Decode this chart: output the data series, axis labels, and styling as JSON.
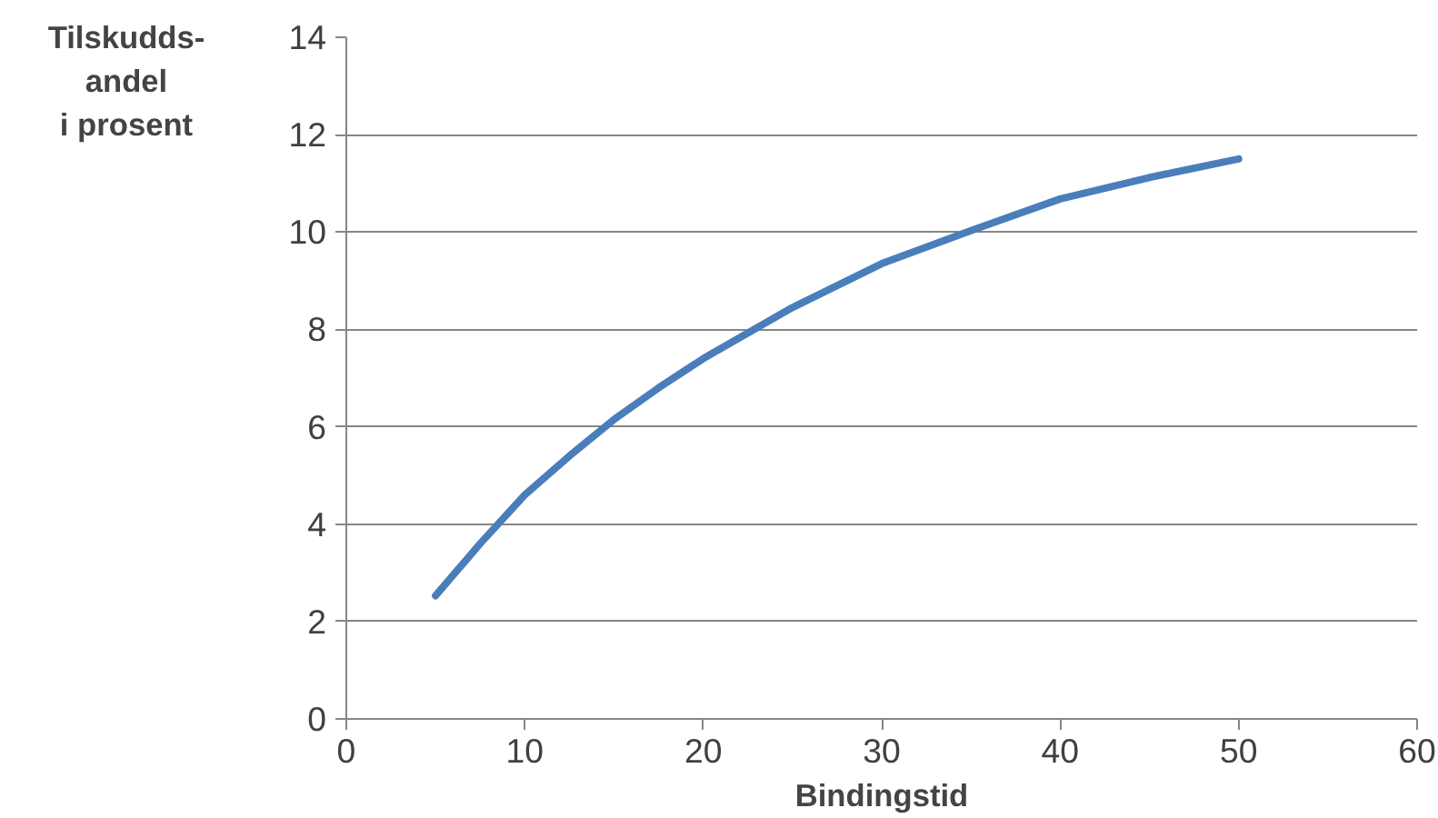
{
  "chart_data": {
    "type": "line",
    "xlabel": "Bindingstid",
    "ylabel": "Tilskudds-\nandel\ni prosent",
    "x": [
      5,
      7.5,
      10,
      12.5,
      15,
      17.5,
      20,
      25,
      30,
      35,
      40,
      45,
      50
    ],
    "series": [
      {
        "color": "#4a7ebb",
        "values": [
          2.53,
          3.6,
          4.6,
          5.4,
          6.15,
          6.8,
          7.4,
          8.45,
          9.35,
          10.03,
          10.68,
          11.12,
          11.5
        ]
      }
    ],
    "xlim": [
      0,
      60
    ],
    "xticks": [
      0,
      10,
      20,
      30,
      40,
      50,
      60
    ],
    "ylim": [
      0,
      14
    ],
    "yticks": [
      0,
      2,
      4,
      6,
      8,
      10,
      12,
      14
    ],
    "grid": "y",
    "marker": "none",
    "line_style": "solid"
  }
}
